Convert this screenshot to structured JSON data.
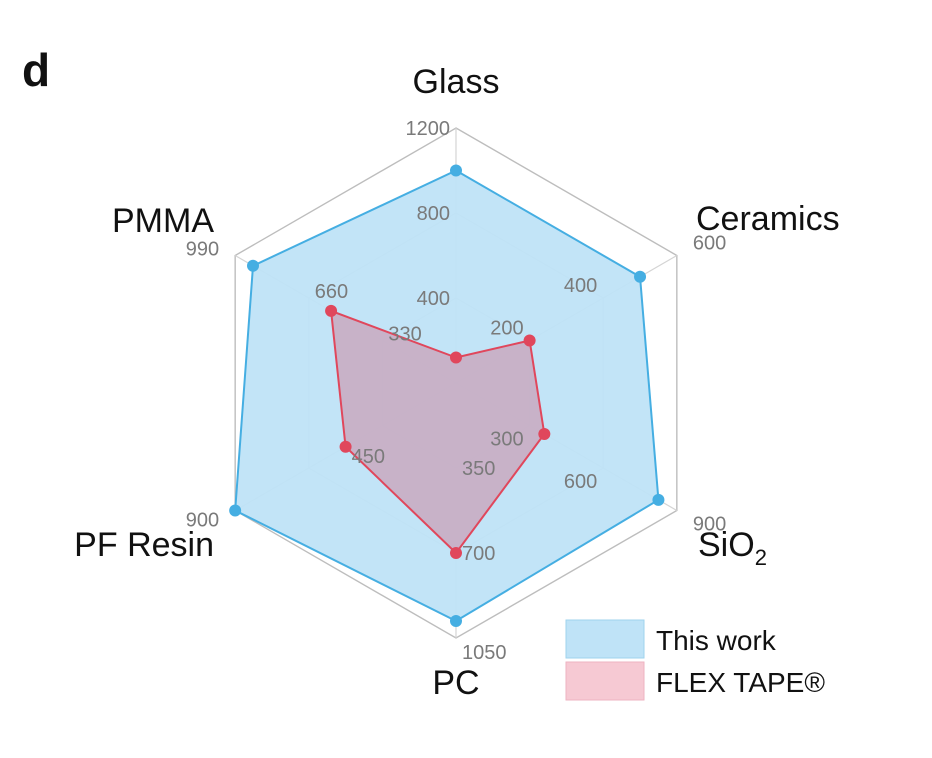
{
  "panel_label": "d",
  "colors": {
    "this_work_fill": "#bfe3f7",
    "this_work_stroke": "#45aee2",
    "flex_fill": "#c9a2b8",
    "flex_stroke": "#e0475c",
    "legend_flex_fill": "#f6c9d3",
    "grid": "#cfcfcf"
  },
  "chart_data": {
    "type": "radar",
    "title": "",
    "axes": [
      {
        "name": "Glass",
        "max": 1200,
        "ticks": [
          {
            "label": "400",
            "value": 400
          },
          {
            "label": "800",
            "value": 800
          },
          {
            "label": "1200",
            "value": 1200
          }
        ]
      },
      {
        "name": "Ceramics",
        "max": 600,
        "ticks": [
          {
            "label": "200",
            "value": 200
          },
          {
            "label": "400",
            "value": 400
          },
          {
            "label": "600",
            "value": 600
          }
        ]
      },
      {
        "name": "SiO",
        "subscript": "2",
        "max": 900,
        "ticks": [
          {
            "label": "300",
            "value": 300
          },
          {
            "label": "600",
            "value": 600
          },
          {
            "label": "900",
            "value": 900
          }
        ]
      },
      {
        "name": "PC",
        "max": 1050,
        "ticks": [
          {
            "label": "350",
            "value": 350
          },
          {
            "label": "700",
            "value": 700
          },
          {
            "label": "1050",
            "value": 1050
          }
        ]
      },
      {
        "name": "PF Resin",
        "max": 900,
        "ticks": [
          {
            "label": "450",
            "value": 450
          },
          {
            "label": "900",
            "value": 900
          }
        ]
      },
      {
        "name": "PMMA",
        "max": 990,
        "ticks": [
          {
            "label": "330",
            "value": 330
          },
          {
            "label": "660",
            "value": 660
          },
          {
            "label": "990",
            "value": 990
          }
        ]
      }
    ],
    "series": [
      {
        "name": "This work",
        "values": [
          1000,
          500,
          825,
          980,
          900,
          910
        ]
      },
      {
        "name": "FLEX TAPE®",
        "values": [
          120,
          200,
          360,
          700,
          450,
          560
        ]
      }
    ],
    "legend_position": "bottom-right"
  }
}
